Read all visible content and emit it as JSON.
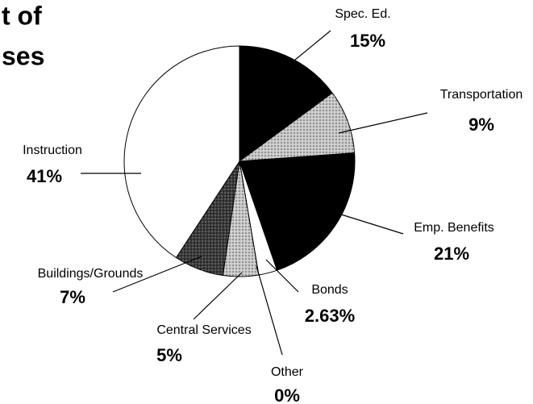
{
  "chart_data": {
    "type": "pie",
    "title_lines": [
      "t of",
      "ses"
    ],
    "categories": [
      "Spec. Ed.",
      "Transportation",
      "Emp. Benefits",
      "Bonds",
      "Other",
      "Central Services",
      "Buildings/Grounds",
      "Instruction"
    ],
    "values": [
      15,
      9,
      21,
      2.63,
      0,
      5,
      7,
      41
    ],
    "value_labels": [
      "15%",
      "9%",
      "21%",
      "2.63%",
      "0%",
      "5%",
      "7%",
      "41%"
    ],
    "colors": [
      "#000000",
      "#c8c8c8",
      "#000000",
      "#ffffff",
      "#ffffff",
      "#c8c8c8",
      "#3a3a3a",
      "#ffffff"
    ]
  }
}
